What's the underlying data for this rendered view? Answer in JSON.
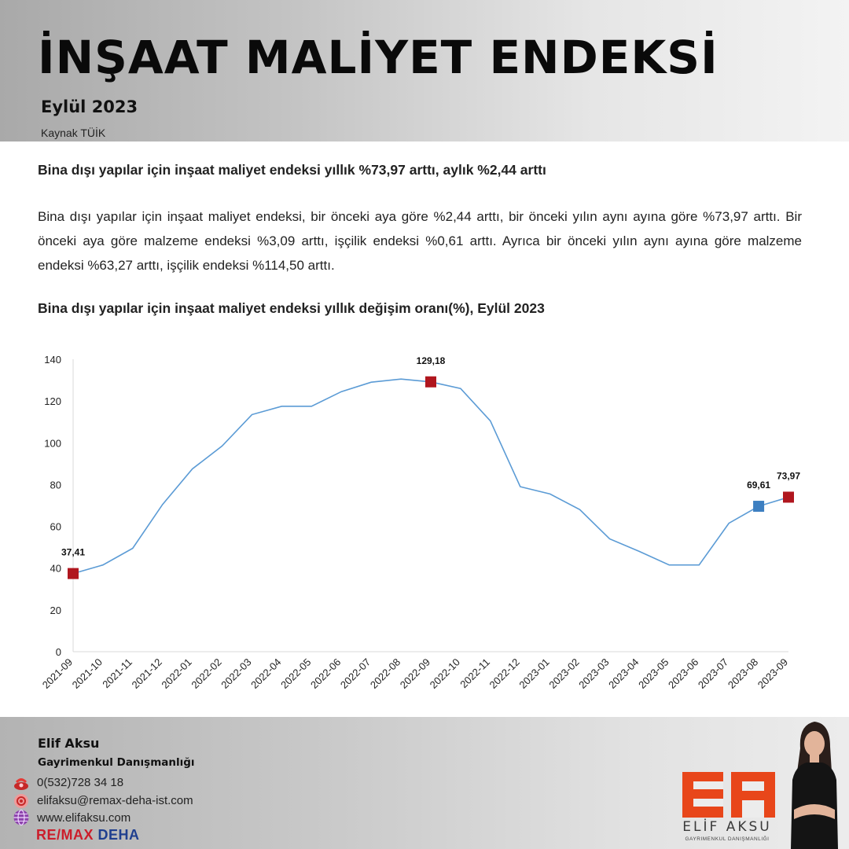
{
  "header": {
    "title": "İNŞAAT MALİYET ENDEKSİ",
    "period": "Eylül 2023",
    "source": "Kaynak TÜİK"
  },
  "article": {
    "headline": "Bina dışı yapılar için inşaat maliyet endeksi yıllık %73,97 arttı, aylık %2,44 arttı",
    "paragraph": "Bina dışı yapılar için inşaat maliyet endeksi, bir önceki aya göre %2,44 arttı, bir önceki yılın aynı ayına göre %73,97 arttı. Bir önceki aya göre malzeme endeksi %3,09 arttı, işçilik endeksi %0,61 arttı. Ayrıca bir önceki yılın aynı ayına göre malzeme endeksi %63,27 arttı, işçilik endeksi %114,50 arttı.",
    "chart_title": "Bina dışı yapılar için inşaat maliyet endeksi yıllık değişim oranı(%), Eylül 2023"
  },
  "chart_data": {
    "type": "line",
    "title": "Bina dışı yapılar için inşaat maliyet endeksi yıllık değişim oranı(%), Eylül 2023",
    "xlabel": "",
    "ylabel": "",
    "ylim": [
      0,
      140
    ],
    "yticks": [
      0,
      20,
      40,
      60,
      80,
      100,
      120,
      140
    ],
    "grid": false,
    "legend": "none",
    "x": [
      "2021-09",
      "2021-10",
      "2021-11",
      "2021-12",
      "2022-01",
      "2022-02",
      "2022-03",
      "2022-04",
      "2022-05",
      "2022-06",
      "2022-07",
      "2022-08",
      "2022-09",
      "2022-10",
      "2022-11",
      "2022-12",
      "2023-01",
      "2023-02",
      "2023-03",
      "2023-04",
      "2023-05",
      "2023-06",
      "2023-07",
      "2023-08",
      "2023-09"
    ],
    "series": [
      {
        "values": [
          37.41,
          41.5,
          49.5,
          70.5,
          87.5,
          98.5,
          113.5,
          117.5,
          117.5,
          124.5,
          129.0,
          130.5,
          129.18,
          126.0,
          110.5,
          79.0,
          75.5,
          68.0,
          54.0,
          48.0,
          41.5,
          41.5,
          61.5,
          69.61,
          73.97
        ],
        "color": "#5b9bd5"
      }
    ],
    "highlights": [
      {
        "x": "2021-09",
        "value": 37.41,
        "label": "37,41",
        "color": "#b0161e"
      },
      {
        "x": "2022-09",
        "value": 129.18,
        "label": "129,18",
        "color": "#b0161e"
      },
      {
        "x": "2023-08",
        "value": 69.61,
        "label": "69,61",
        "color": "#3d7fc1"
      },
      {
        "x": "2023-09",
        "value": 73.97,
        "label": "73,97",
        "color": "#b0161e"
      }
    ]
  },
  "footer": {
    "name": "Elif Aksu",
    "role": "Gayrimenkul Danışmanlığı",
    "phone": "0(532)728 34 18",
    "email": "elifaksu@remax-deha-ist.com",
    "website": "www.elifaksu.com",
    "brand_re": "RE",
    "brand_slash": "/",
    "brand_max": "MAX",
    "brand_office": " DEHA",
    "logo_name": "ELİF AKSU",
    "logo_sub": "GAYRIMENKUL DANIŞMANLIĞI",
    "icons": {
      "phone": "phone-icon",
      "email": "email-icon",
      "website": "globe-icon"
    }
  }
}
